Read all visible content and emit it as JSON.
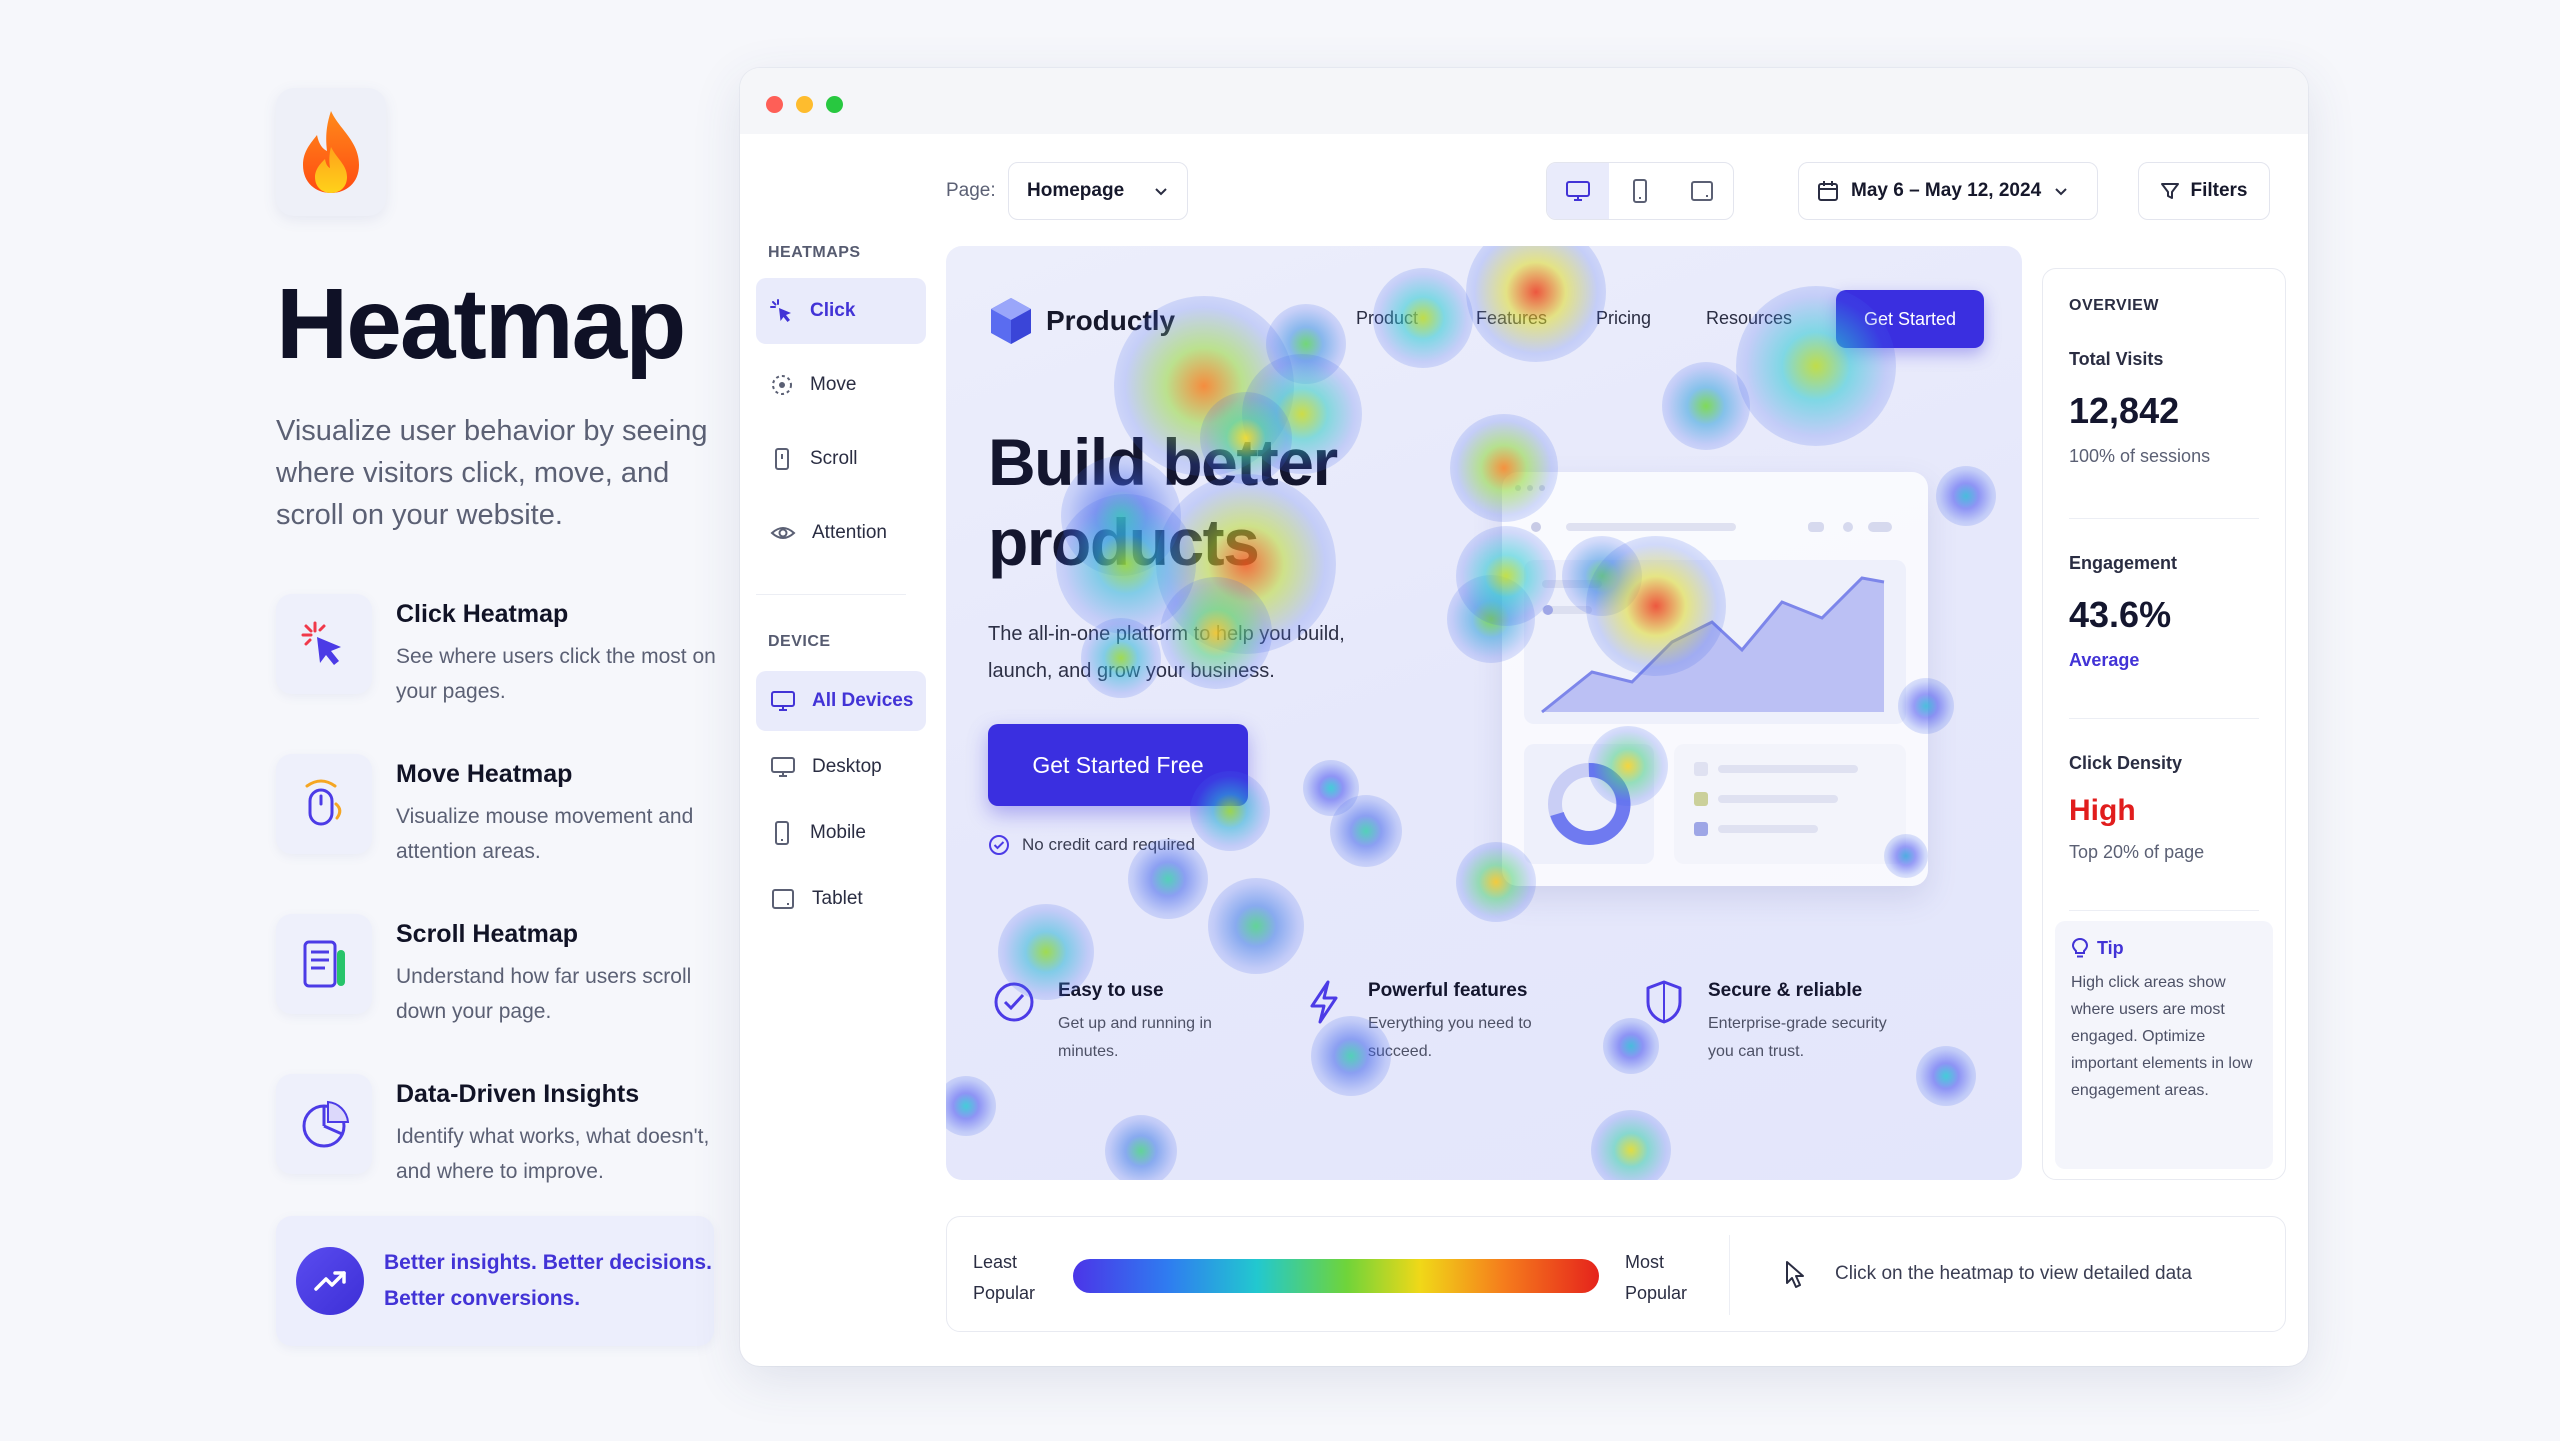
{
  "intro": {
    "title": "Heatmap",
    "subtitle": "Visualize user behavior by seeing where visitors click, move, and scroll on your website.",
    "features": [
      {
        "icon": "click-cursor-icon",
        "title": "Click Heatmap",
        "desc": "See where users click the most on your pages."
      },
      {
        "icon": "mouse-move-icon",
        "title": "Move Heatmap",
        "desc": "Visualize mouse movement and attention areas."
      },
      {
        "icon": "scroll-document-icon",
        "title": "Scroll Heatmap",
        "desc": "Understand how far users scroll down your page."
      },
      {
        "icon": "pie-chart-icon",
        "title": "Data-Driven Insights",
        "desc": "Identify what works, what doesn't, and where to improve."
      }
    ],
    "insight_line1": "Better insights. Better decisions.",
    "insight_line2": "Better conversions."
  },
  "toolbar": {
    "page_label": "Page:",
    "page_value": "Homepage",
    "date_range": "May 6 – May 12, 2024",
    "filters_label": "Filters",
    "active_device": "desktop"
  },
  "sidebar": {
    "heatmaps_heading": "HEATMAPS",
    "heatmaps": [
      {
        "label": "Click",
        "icon": "click-icon",
        "active": true
      },
      {
        "label": "Move",
        "icon": "move-icon",
        "active": false
      },
      {
        "label": "Scroll",
        "icon": "scroll-icon",
        "active": false
      },
      {
        "label": "Attention",
        "icon": "eye-icon",
        "active": false
      }
    ],
    "device_heading": "DEVICE",
    "devices": [
      {
        "label": "All Devices",
        "icon": "monitor-icon",
        "active": true
      },
      {
        "label": "Desktop",
        "icon": "desktop-icon",
        "active": false
      },
      {
        "label": "Mobile",
        "icon": "mobile-icon",
        "active": false
      },
      {
        "label": "Tablet",
        "icon": "tablet-icon",
        "active": false
      }
    ]
  },
  "preview": {
    "brand": "Productly",
    "nav": [
      "Product",
      "Features",
      "Pricing",
      "Resources"
    ],
    "nav_cta": "Get Started",
    "headline_1": "Build better",
    "headline_2": "products",
    "paragraph": "The all-in-one platform to help you build, launch, and grow your business.",
    "cta": "Get Started Free",
    "note": "No credit card required",
    "features": [
      {
        "icon": "check-circle-icon",
        "title": "Easy to use",
        "desc": "Get up and running in minutes."
      },
      {
        "icon": "lightning-icon",
        "title": "Powerful features",
        "desc": "Everything you need to succeed."
      },
      {
        "icon": "shield-icon",
        "title": "Secure & reliable",
        "desc": "Enterprise-grade security you can trust."
      }
    ]
  },
  "overview": {
    "heading": "OVERVIEW",
    "total_visits_label": "Total Visits",
    "total_visits_value": "12,842",
    "total_visits_sub": "100% of sessions",
    "engagement_label": "Engagement",
    "engagement_value": "43.6%",
    "engagement_sub": "Average",
    "density_label": "Click Density",
    "density_value": "High",
    "density_sub": "Top 20% of page",
    "tip_heading": "Tip",
    "tip_text": "High click areas show where users are most engaged. Optimize important elements in low engagement areas."
  },
  "legend": {
    "least_1": "Least",
    "least_2": "Popular",
    "most_1": "Most",
    "most_2": "Popular",
    "hint": "Click on the heatmap to view detailed data"
  },
  "colors": {
    "accent": "#4233d6",
    "cta": "#3a2fe0",
    "high": "#e11d1d"
  }
}
